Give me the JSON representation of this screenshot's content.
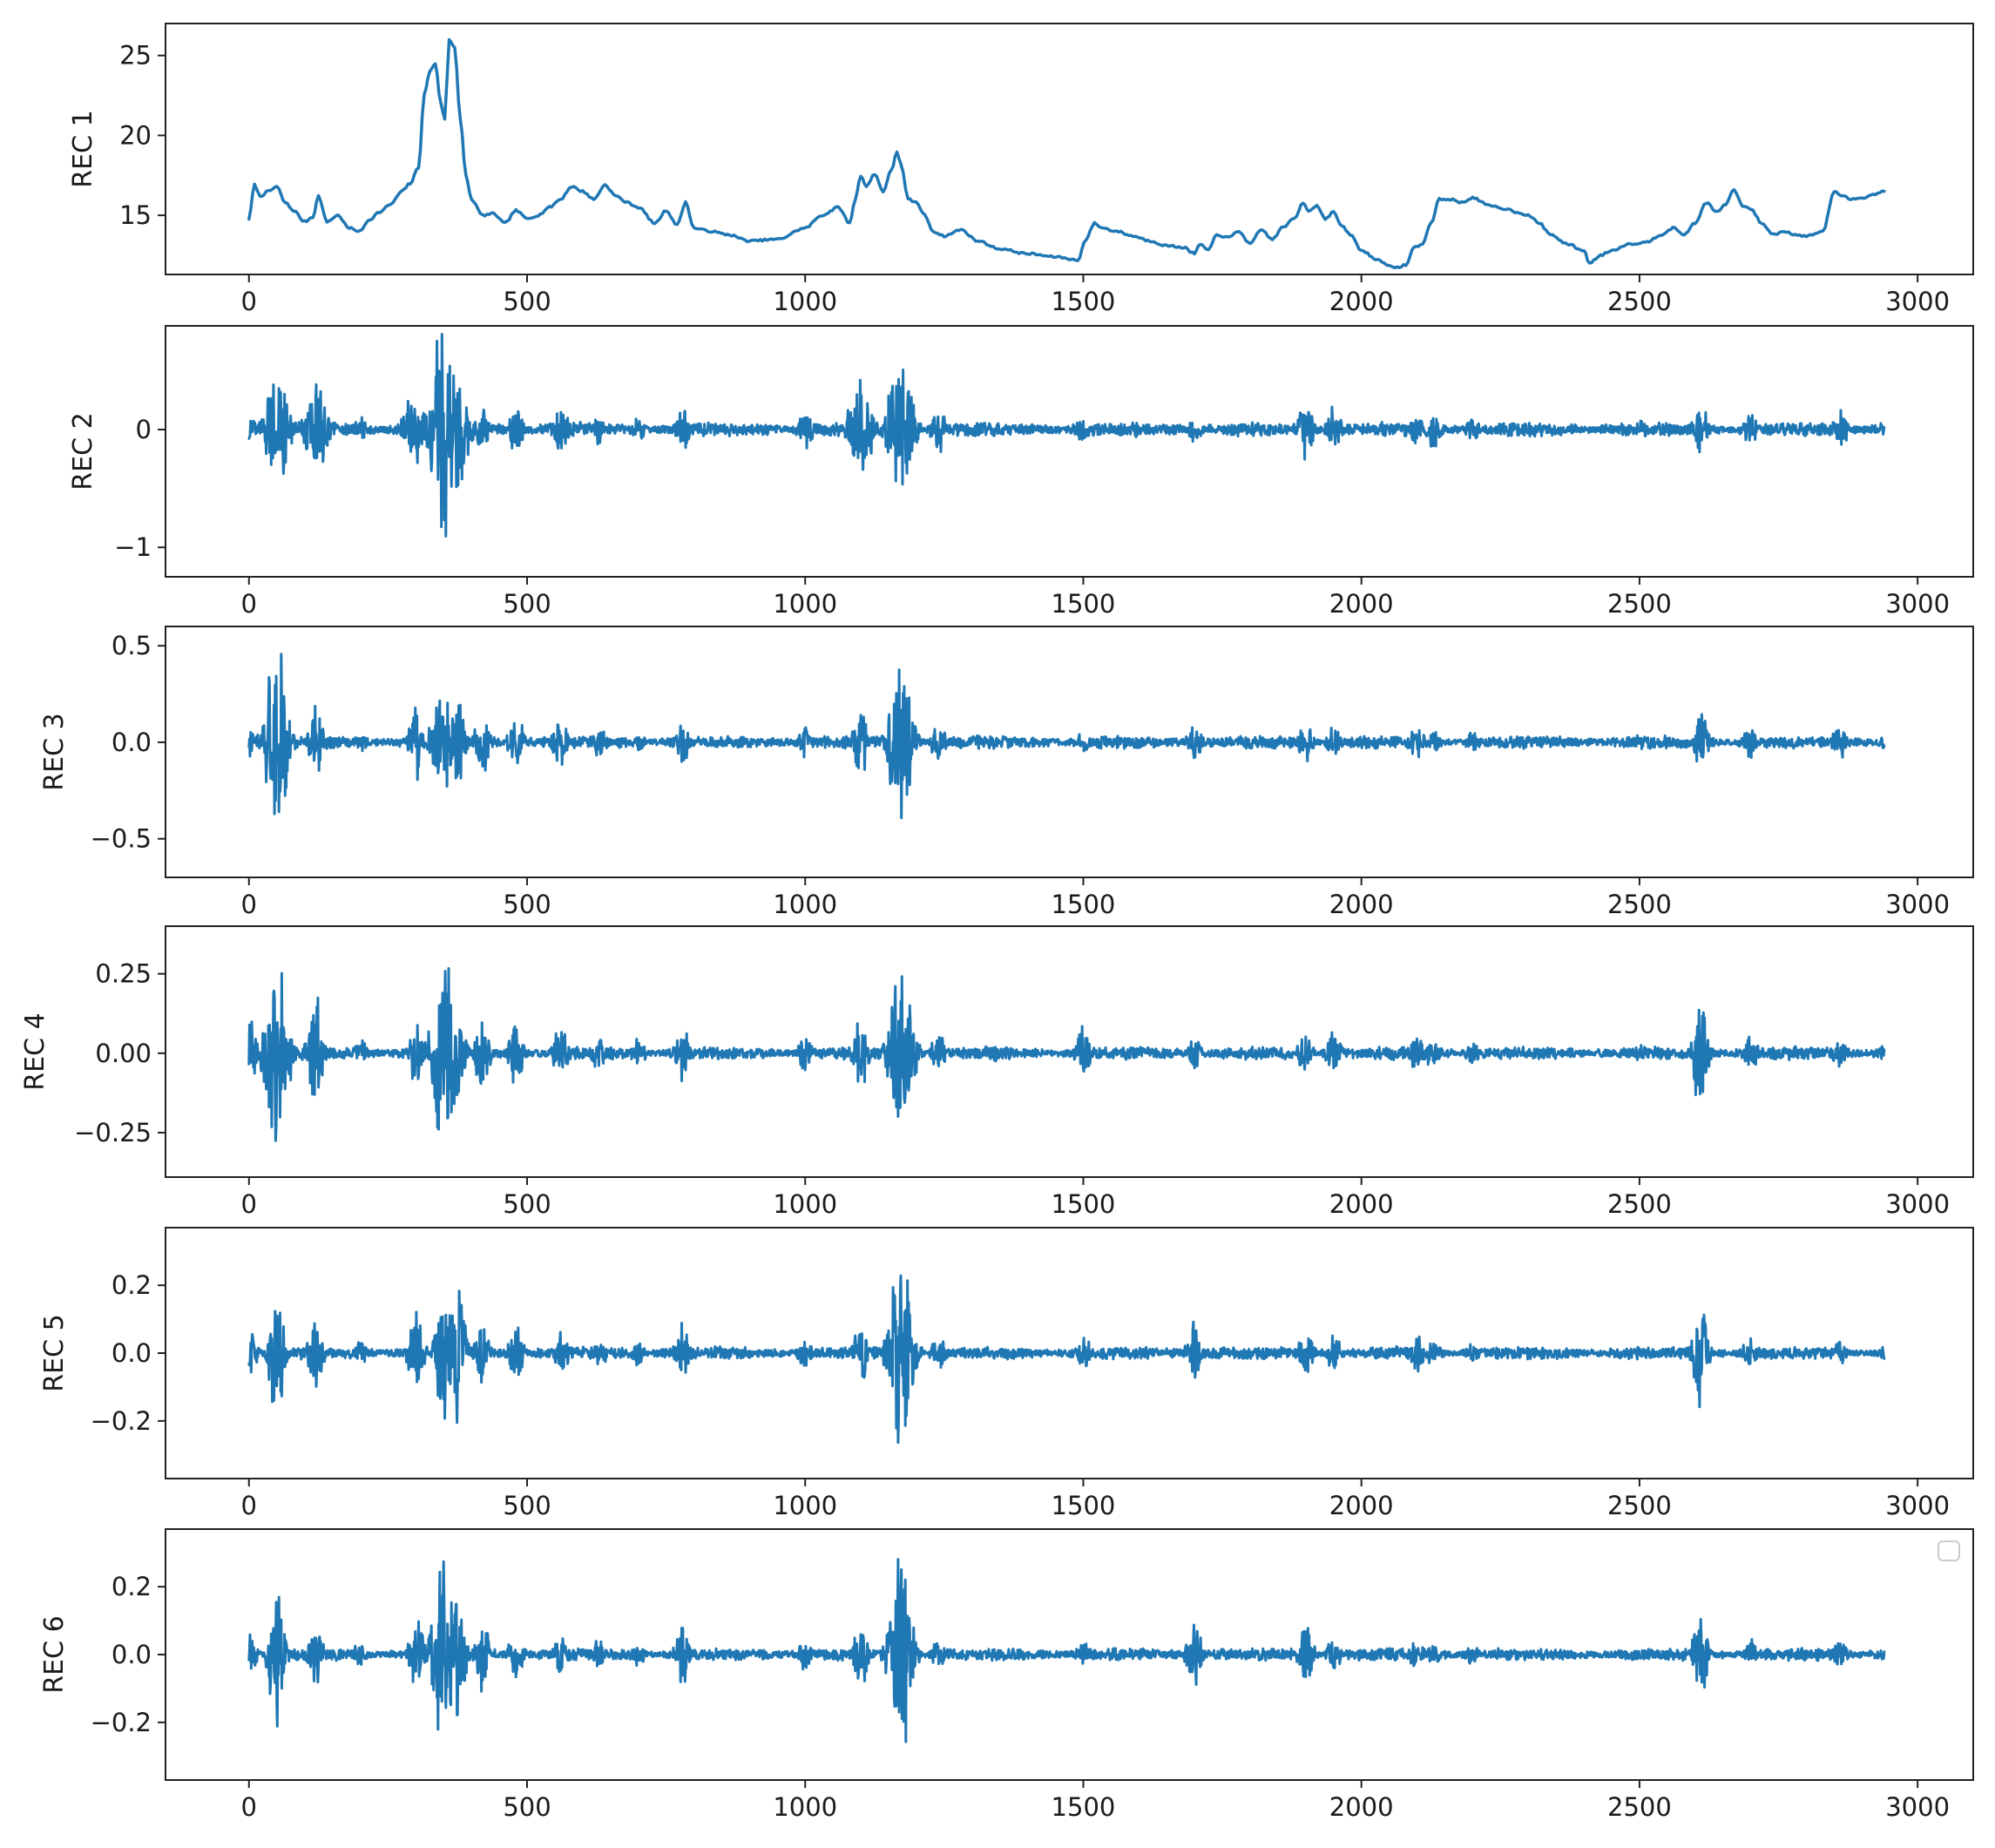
{
  "chart_data": [
    {
      "type": "line",
      "ylabel": "REC 1",
      "xlim": [
        -150,
        3100
      ],
      "ylim": [
        11.3,
        27.0
      ],
      "xticks": [
        0,
        500,
        1000,
        1500,
        2000,
        2500,
        3000
      ],
      "yticks": [
        15,
        20,
        25
      ],
      "grid": false,
      "color": "#1f77b4",
      "series": [
        {
          "x": [
            0,
            10,
            20,
            35,
            50,
            65,
            80,
            100,
            115,
            125,
            140,
            160,
            180,
            200,
            215,
            235,
            255,
            275,
            290,
            305,
            315,
            325,
            335,
            345,
            352,
            360,
            370,
            380,
            390,
            400,
            420,
            440,
            460,
            480,
            500,
            520,
            540,
            560,
            580,
            600,
            620,
            640,
            660,
            680,
            700,
            730,
            750,
            770,
            785,
            800,
            830,
            860,
            900,
            950,
            1000,
            1030,
            1060,
            1080,
            1090,
            1100,
            1110,
            1125,
            1140,
            1155,
            1165,
            1172,
            1185,
            1200,
            1215,
            1230,
            1250,
            1280,
            1310,
            1350,
            1400,
            1450,
            1490,
            1505,
            1520,
            1535,
            1560,
            1590,
            1620,
            1650,
            1680,
            1700,
            1710,
            1725,
            1740,
            1760,
            1780,
            1800,
            1820,
            1840,
            1860,
            1880,
            1895,
            1905,
            1920,
            1935,
            1950,
            1965,
            1980,
            2000,
            2030,
            2060,
            2080,
            2095,
            2110,
            2125,
            2140,
            2160,
            2180,
            2200,
            2230,
            2260,
            2280,
            2300,
            2320,
            2340,
            2370,
            2400,
            2410,
            2430,
            2450,
            2480,
            2510,
            2540,
            2560,
            2580,
            2600,
            2620,
            2640,
            2655,
            2670,
            2685,
            2700,
            2720,
            2740,
            2760,
            2780,
            2800,
            2830,
            2850,
            2865,
            2880,
            2900,
            2920,
            2940
          ],
          "y": [
            14.8,
            16.9,
            16.2,
            16.5,
            16.8,
            15.8,
            15.3,
            14.6,
            14.9,
            16.2,
            14.6,
            15.0,
            14.2,
            14.0,
            14.7,
            15.2,
            15.7,
            16.5,
            17.0,
            18.0,
            22.5,
            24.0,
            24.5,
            22.0,
            21.0,
            26.0,
            25.5,
            21.0,
            17.5,
            16.0,
            15.0,
            15.1,
            14.5,
            15.3,
            14.8,
            15.0,
            15.5,
            16.0,
            16.8,
            16.5,
            16.0,
            16.9,
            16.2,
            15.8,
            15.5,
            14.5,
            15.3,
            14.4,
            15.8,
            14.2,
            14.0,
            13.8,
            13.4,
            13.5,
            14.2,
            15.0,
            15.5,
            14.5,
            16.0,
            17.5,
            16.8,
            17.6,
            16.5,
            17.8,
            19.0,
            18.2,
            16.0,
            15.8,
            15.0,
            14.0,
            13.7,
            14.1,
            13.4,
            12.9,
            12.6,
            12.4,
            12.2,
            13.5,
            14.5,
            14.2,
            14.0,
            13.7,
            13.4,
            13.1,
            13.0,
            12.6,
            13.2,
            12.8,
            13.8,
            13.6,
            14.0,
            13.2,
            14.1,
            13.5,
            14.3,
            14.8,
            15.8,
            15.3,
            15.6,
            14.8,
            15.2,
            14.3,
            13.8,
            12.8,
            12.2,
            11.7,
            11.9,
            13.0,
            13.2,
            14.5,
            16.0,
            16.0,
            15.8,
            16.1,
            15.6,
            15.4,
            15.2,
            15.0,
            14.5,
            13.8,
            13.2,
            12.8,
            12.0,
            12.5,
            12.8,
            13.2,
            13.3,
            13.8,
            14.2,
            13.8,
            14.5,
            15.8,
            15.2,
            15.7,
            16.6,
            15.6,
            15.4,
            14.5,
            13.8,
            14.0,
            13.8,
            13.7,
            14.0,
            16.5,
            16.2,
            16.0,
            16.1,
            16.3,
            16.5
          ]
        }
      ]
    },
    {
      "type": "line",
      "ylabel": "REC 2",
      "xlim": [
        -150,
        3100
      ],
      "ylim": [
        -1.25,
        0.88
      ],
      "xticks": [
        0,
        500,
        1000,
        1500,
        2000,
        2500,
        3000
      ],
      "yticks": [
        -1,
        0
      ],
      "grid": false,
      "color": "#1f77b4",
      "bursts": [
        {
          "x": 0,
          "amp": 0.2
        },
        {
          "x": 50,
          "amp": 0.55
        },
        {
          "x": 120,
          "amp": 0.42
        },
        {
          "x": 200,
          "amp": 0.12
        },
        {
          "x": 300,
          "amp": 0.42
        },
        {
          "x": 350,
          "amp": 1.1
        },
        {
          "x": 375,
          "amp": 0.55
        },
        {
          "x": 420,
          "amp": 0.2
        },
        {
          "x": 480,
          "amp": 0.22
        },
        {
          "x": 560,
          "amp": 0.25
        },
        {
          "x": 630,
          "amp": 0.15
        },
        {
          "x": 700,
          "amp": 0.12
        },
        {
          "x": 780,
          "amp": 0.2
        },
        {
          "x": 1000,
          "amp": 0.2
        },
        {
          "x": 1100,
          "amp": 0.5
        },
        {
          "x": 1172,
          "amp": 0.85
        },
        {
          "x": 1240,
          "amp": 0.25
        },
        {
          "x": 1340,
          "amp": 0.08
        },
        {
          "x": 1500,
          "amp": 0.12
        },
        {
          "x": 1700,
          "amp": 0.12
        },
        {
          "x": 1900,
          "amp": 0.3
        },
        {
          "x": 1950,
          "amp": 0.22
        },
        {
          "x": 2100,
          "amp": 0.15
        },
        {
          "x": 2130,
          "amp": 0.2
        },
        {
          "x": 2200,
          "amp": 0.12
        },
        {
          "x": 2500,
          "amp": 0.08
        },
        {
          "x": 2610,
          "amp": 0.25
        },
        {
          "x": 2700,
          "amp": 0.15
        },
        {
          "x": 2860,
          "amp": 0.22
        },
        {
          "x": 2940,
          "amp": 0.08
        }
      ]
    },
    {
      "type": "line",
      "ylabel": "REC 3",
      "xlim": [
        -150,
        3100
      ],
      "ylim": [
        -0.7,
        0.6
      ],
      "xticks": [
        0,
        500,
        1000,
        1500,
        2000,
        2500,
        3000
      ],
      "yticks": [
        -0.5,
        0.0,
        0.5
      ],
      "grid": false,
      "color": "#1f77b4",
      "bursts": [
        {
          "x": 0,
          "amp": 0.1
        },
        {
          "x": 50,
          "amp": 0.6
        },
        {
          "x": 120,
          "amp": 0.25
        },
        {
          "x": 200,
          "amp": 0.05
        },
        {
          "x": 300,
          "amp": 0.22
        },
        {
          "x": 350,
          "amp": 0.35
        },
        {
          "x": 375,
          "amp": 0.3
        },
        {
          "x": 420,
          "amp": 0.2
        },
        {
          "x": 480,
          "amp": 0.18
        },
        {
          "x": 560,
          "amp": 0.15
        },
        {
          "x": 630,
          "amp": 0.08
        },
        {
          "x": 700,
          "amp": 0.05
        },
        {
          "x": 780,
          "amp": 0.12
        },
        {
          "x": 1000,
          "amp": 0.1
        },
        {
          "x": 1100,
          "amp": 0.2
        },
        {
          "x": 1172,
          "amp": 0.52
        },
        {
          "x": 1240,
          "amp": 0.12
        },
        {
          "x": 1340,
          "amp": 0.04
        },
        {
          "x": 1500,
          "amp": 0.06
        },
        {
          "x": 1700,
          "amp": 0.12
        },
        {
          "x": 1900,
          "amp": 0.12
        },
        {
          "x": 1950,
          "amp": 0.1
        },
        {
          "x": 2100,
          "amp": 0.1
        },
        {
          "x": 2130,
          "amp": 0.06
        },
        {
          "x": 2200,
          "amp": 0.06
        },
        {
          "x": 2500,
          "amp": 0.04
        },
        {
          "x": 2610,
          "amp": 0.18
        },
        {
          "x": 2700,
          "amp": 0.1
        },
        {
          "x": 2860,
          "amp": 0.1
        },
        {
          "x": 2940,
          "amp": 0.04
        }
      ]
    },
    {
      "type": "line",
      "ylabel": "REC 4",
      "xlim": [
        -150,
        3100
      ],
      "ylim": [
        -0.39,
        0.4
      ],
      "xticks": [
        0,
        500,
        1000,
        1500,
        2000,
        2500,
        3000
      ],
      "yticks": [
        -0.25,
        0.0,
        0.25
      ],
      "grid": false,
      "color": "#1f77b4",
      "bursts": [
        {
          "x": 0,
          "amp": 0.12
        },
        {
          "x": 50,
          "amp": 0.37
        },
        {
          "x": 120,
          "amp": 0.22
        },
        {
          "x": 200,
          "amp": 0.05
        },
        {
          "x": 300,
          "amp": 0.13
        },
        {
          "x": 350,
          "amp": 0.36
        },
        {
          "x": 375,
          "amp": 0.2
        },
        {
          "x": 420,
          "amp": 0.14
        },
        {
          "x": 480,
          "amp": 0.12
        },
        {
          "x": 560,
          "amp": 0.1
        },
        {
          "x": 630,
          "amp": 0.07
        },
        {
          "x": 700,
          "amp": 0.05
        },
        {
          "x": 780,
          "amp": 0.1
        },
        {
          "x": 1000,
          "amp": 0.06
        },
        {
          "x": 1100,
          "amp": 0.13
        },
        {
          "x": 1172,
          "amp": 0.34
        },
        {
          "x": 1240,
          "amp": 0.08
        },
        {
          "x": 1340,
          "amp": 0.03
        },
        {
          "x": 1500,
          "amp": 0.09
        },
        {
          "x": 1700,
          "amp": 0.05
        },
        {
          "x": 1900,
          "amp": 0.08
        },
        {
          "x": 1950,
          "amp": 0.09
        },
        {
          "x": 2100,
          "amp": 0.07
        },
        {
          "x": 2130,
          "amp": 0.06
        },
        {
          "x": 2200,
          "amp": 0.04
        },
        {
          "x": 2500,
          "amp": 0.03
        },
        {
          "x": 2610,
          "amp": 0.2
        },
        {
          "x": 2700,
          "amp": 0.06
        },
        {
          "x": 2860,
          "amp": 0.05
        },
        {
          "x": 2940,
          "amp": 0.03
        }
      ]
    },
    {
      "type": "line",
      "ylabel": "REC 5",
      "xlim": [
        -150,
        3100
      ],
      "ylim": [
        -0.37,
        0.37
      ],
      "xticks": [
        0,
        500,
        1000,
        1500,
        2000,
        2500,
        3000
      ],
      "yticks": [
        -0.2,
        0.0,
        0.2
      ],
      "grid": false,
      "color": "#1f77b4",
      "bursts": [
        {
          "x": 0,
          "amp": 0.1
        },
        {
          "x": 50,
          "amp": 0.24
        },
        {
          "x": 120,
          "amp": 0.14
        },
        {
          "x": 200,
          "amp": 0.04
        },
        {
          "x": 300,
          "amp": 0.15
        },
        {
          "x": 350,
          "amp": 0.28
        },
        {
          "x": 375,
          "amp": 0.28
        },
        {
          "x": 420,
          "amp": 0.12
        },
        {
          "x": 480,
          "amp": 0.1
        },
        {
          "x": 560,
          "amp": 0.08
        },
        {
          "x": 630,
          "amp": 0.05
        },
        {
          "x": 700,
          "amp": 0.04
        },
        {
          "x": 780,
          "amp": 0.1
        },
        {
          "x": 1000,
          "amp": 0.05
        },
        {
          "x": 1100,
          "amp": 0.1
        },
        {
          "x": 1172,
          "amp": 0.34
        },
        {
          "x": 1240,
          "amp": 0.06
        },
        {
          "x": 1340,
          "amp": 0.02
        },
        {
          "x": 1500,
          "amp": 0.06
        },
        {
          "x": 1700,
          "amp": 0.1
        },
        {
          "x": 1900,
          "amp": 0.08
        },
        {
          "x": 1950,
          "amp": 0.06
        },
        {
          "x": 2100,
          "amp": 0.06
        },
        {
          "x": 2130,
          "amp": 0.05
        },
        {
          "x": 2200,
          "amp": 0.04
        },
        {
          "x": 2500,
          "amp": 0.02
        },
        {
          "x": 2610,
          "amp": 0.17
        },
        {
          "x": 2700,
          "amp": 0.06
        },
        {
          "x": 2860,
          "amp": 0.04
        },
        {
          "x": 2940,
          "amp": 0.03
        }
      ]
    },
    {
      "type": "line",
      "ylabel": "REC 6",
      "xlim": [
        -150,
        3100
      ],
      "ylim": [
        -0.37,
        0.37
      ],
      "xticks": [
        0,
        500,
        1000,
        1500,
        2000,
        2500,
        3000
      ],
      "yticks": [
        -0.2,
        0.0,
        0.2
      ],
      "grid": false,
      "legend": "upper right (empty)",
      "color": "#1f77b4",
      "bursts": [
        {
          "x": 0,
          "amp": 0.08
        },
        {
          "x": 50,
          "amp": 0.26
        },
        {
          "x": 120,
          "amp": 0.1
        },
        {
          "x": 200,
          "amp": 0.04
        },
        {
          "x": 300,
          "amp": 0.12
        },
        {
          "x": 350,
          "amp": 0.32
        },
        {
          "x": 375,
          "amp": 0.22
        },
        {
          "x": 420,
          "amp": 0.12
        },
        {
          "x": 480,
          "amp": 0.08
        },
        {
          "x": 560,
          "amp": 0.06
        },
        {
          "x": 630,
          "amp": 0.05
        },
        {
          "x": 700,
          "amp": 0.04
        },
        {
          "x": 780,
          "amp": 0.1
        },
        {
          "x": 1000,
          "amp": 0.06
        },
        {
          "x": 1100,
          "amp": 0.12
        },
        {
          "x": 1172,
          "amp": 0.34
        },
        {
          "x": 1240,
          "amp": 0.06
        },
        {
          "x": 1340,
          "amp": 0.02
        },
        {
          "x": 1500,
          "amp": 0.04
        },
        {
          "x": 1700,
          "amp": 0.12
        },
        {
          "x": 1900,
          "amp": 0.1
        },
        {
          "x": 1950,
          "amp": 0.06
        },
        {
          "x": 2100,
          "amp": 0.05
        },
        {
          "x": 2130,
          "amp": 0.04
        },
        {
          "x": 2200,
          "amp": 0.04
        },
        {
          "x": 2500,
          "amp": 0.02
        },
        {
          "x": 2610,
          "amp": 0.15
        },
        {
          "x": 2700,
          "amp": 0.05
        },
        {
          "x": 2860,
          "amp": 0.05
        },
        {
          "x": 2940,
          "amp": 0.03
        }
      ]
    }
  ]
}
